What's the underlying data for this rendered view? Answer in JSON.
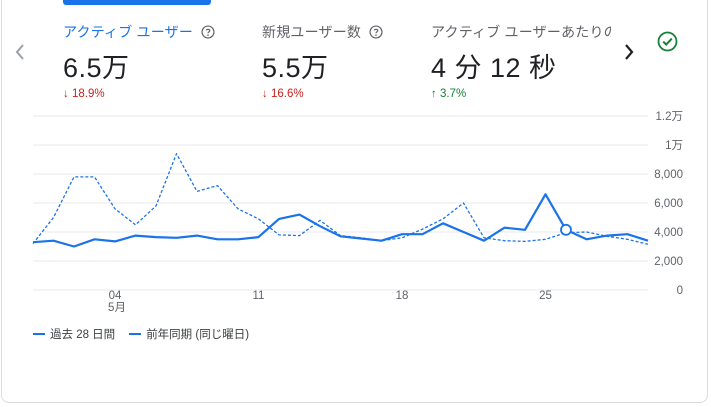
{
  "metrics": [
    {
      "title": "アクティブ ユーザー",
      "value": "6.5万",
      "change": "18.9%",
      "direction": "down",
      "active": true
    },
    {
      "title": "新規ユーザー数",
      "value": "5.5万",
      "change": "16.6%",
      "direction": "down",
      "active": false
    },
    {
      "title": "アクティブ ユーザーあたりの",
      "value": "4 分 12 秒",
      "change": "3.7%",
      "direction": "up",
      "active": false
    }
  ],
  "icons": {
    "prev": "chevron-left-icon",
    "next": "chevron-right-icon",
    "help": "help-circle-icon",
    "status": "check-circle-icon",
    "down": "arrow-down-icon",
    "up": "arrow-up-icon"
  },
  "colors": {
    "accent": "#1a73e8",
    "down": "#c5221f",
    "up": "#188038",
    "status": "#188038"
  },
  "legend": {
    "current": "過去 28 日間",
    "previous": "前年同期 (同じ曜日)"
  },
  "chart_data": {
    "type": "line",
    "title": "",
    "xlabel": "",
    "ylabel": "",
    "ylim": [
      0,
      12000
    ],
    "y_ticks": [
      "0",
      "2,000",
      "4,000",
      "6,000",
      "8,000",
      "1万",
      "1.2万"
    ],
    "x_tick_labels": [
      {
        "index": 4,
        "label": "04",
        "sub": "5月"
      },
      {
        "index": 11,
        "label": "11",
        "sub": ""
      },
      {
        "index": 18,
        "label": "18",
        "sub": ""
      },
      {
        "index": 25,
        "label": "25",
        "sub": ""
      }
    ],
    "grid": true,
    "legend_position": "bottom-left",
    "highlight_index": 26,
    "series": [
      {
        "name": "過去 28 日間",
        "style": "solid",
        "values": [
          3300,
          3400,
          3000,
          3500,
          3350,
          3750,
          3650,
          3600,
          3750,
          3500,
          3500,
          3650,
          4900,
          5200,
          4400,
          3700,
          3550,
          3400,
          3850,
          3850,
          4600,
          4000,
          3400,
          4300,
          4150,
          6600,
          4150,
          3500,
          3750,
          3850,
          3400
        ]
      },
      {
        "name": "前年同期 (同じ曜日)",
        "style": "dashed",
        "values": [
          3200,
          5000,
          7800,
          7800,
          5600,
          4500,
          5800,
          9400,
          6800,
          7200,
          5600,
          4900,
          3800,
          3750,
          4800,
          3750,
          3600,
          3400,
          3600,
          4200,
          4900,
          6000,
          3600,
          3400,
          3350,
          3500,
          3950,
          4000,
          3700,
          3500,
          3150
        ]
      }
    ]
  }
}
